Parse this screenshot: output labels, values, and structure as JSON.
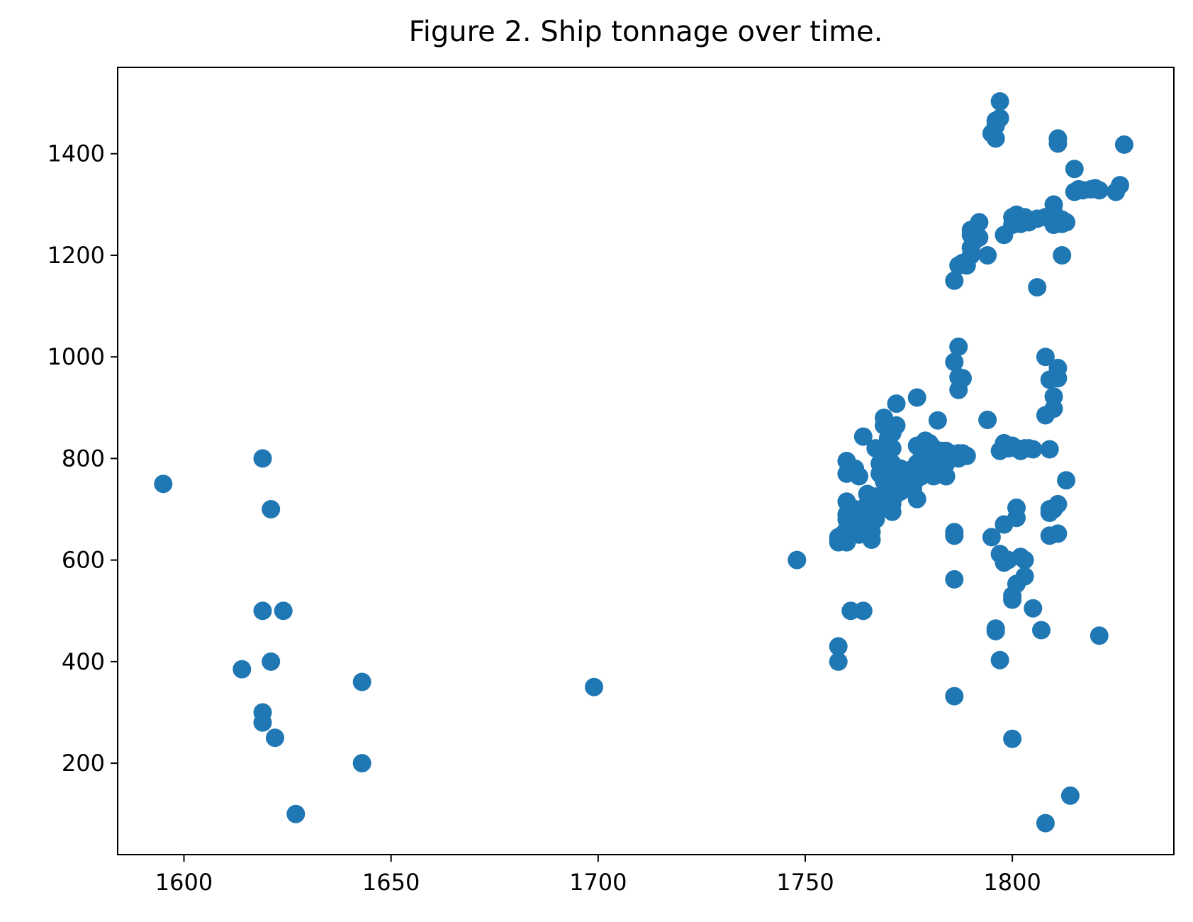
{
  "chart_data": {
    "type": "scatter",
    "title": "Figure 2. Ship tonnage over time.",
    "xlabel": "",
    "ylabel": "",
    "xlim": [
      1584,
      1839
    ],
    "ylim": [
      20,
      1570
    ],
    "xticks": [
      1600,
      1650,
      1700,
      1750,
      1800
    ],
    "yticks": [
      200,
      400,
      600,
      800,
      1000,
      1200,
      1400
    ],
    "grid": false,
    "legend": "none",
    "colors": {
      "points": "#1f77b4",
      "axes": "#000000",
      "background": "#ffffff"
    },
    "series": [
      {
        "points": [
          [
            1595,
            750
          ],
          [
            1614,
            385
          ],
          [
            1619,
            800
          ],
          [
            1619,
            500
          ],
          [
            1619,
            300
          ],
          [
            1619,
            280
          ],
          [
            1621,
            700
          ],
          [
            1621,
            400
          ],
          [
            1622,
            250
          ],
          [
            1624,
            500
          ],
          [
            1627,
            100
          ],
          [
            1643,
            360
          ],
          [
            1643,
            200
          ],
          [
            1699,
            350
          ],
          [
            1748,
            600
          ],
          [
            1758,
            640
          ],
          [
            1758,
            635
          ],
          [
            1758,
            645
          ],
          [
            1759,
            650
          ],
          [
            1758,
            430
          ],
          [
            1758,
            400
          ],
          [
            1760,
            795
          ],
          [
            1760,
            770
          ],
          [
            1760,
            715
          ],
          [
            1760,
            690
          ],
          [
            1760,
            680
          ],
          [
            1760,
            660
          ],
          [
            1760,
            635
          ],
          [
            1761,
            500
          ],
          [
            1762,
            780
          ],
          [
            1762,
            700
          ],
          [
            1762,
            665
          ],
          [
            1763,
            765
          ],
          [
            1763,
            690
          ],
          [
            1763,
            660
          ],
          [
            1763,
            650
          ],
          [
            1764,
            843
          ],
          [
            1764,
            500
          ],
          [
            1764,
            700
          ],
          [
            1764,
            680
          ],
          [
            1765,
            730
          ],
          [
            1765,
            710
          ],
          [
            1765,
            690
          ],
          [
            1765,
            670
          ],
          [
            1766,
            700
          ],
          [
            1766,
            655
          ],
          [
            1766,
            640
          ],
          [
            1767,
            820
          ],
          [
            1767,
            725
          ],
          [
            1767,
            700
          ],
          [
            1767,
            680
          ],
          [
            1768,
            790
          ],
          [
            1768,
            770
          ],
          [
            1768,
            720
          ],
          [
            1768,
            700
          ],
          [
            1769,
            880
          ],
          [
            1769,
            865
          ],
          [
            1769,
            820
          ],
          [
            1769,
            800
          ],
          [
            1769,
            780
          ],
          [
            1769,
            755
          ],
          [
            1770,
            840
          ],
          [
            1770,
            810
          ],
          [
            1770,
            790
          ],
          [
            1770,
            760
          ],
          [
            1770,
            745
          ],
          [
            1770,
            730
          ],
          [
            1771,
            850
          ],
          [
            1771,
            820
          ],
          [
            1771,
            790
          ],
          [
            1771,
            740
          ],
          [
            1771,
            710
          ],
          [
            1771,
            695
          ],
          [
            1772,
            908
          ],
          [
            1772,
            865
          ],
          [
            1772,
            770
          ],
          [
            1772,
            750
          ],
          [
            1772,
            730
          ],
          [
            1773,
            780
          ],
          [
            1773,
            760
          ],
          [
            1773,
            745
          ],
          [
            1773,
            735
          ],
          [
            1774,
            765
          ],
          [
            1774,
            750
          ],
          [
            1774,
            740
          ],
          [
            1775,
            775
          ],
          [
            1775,
            755
          ],
          [
            1775,
            745
          ],
          [
            1776,
            780
          ],
          [
            1776,
            760
          ],
          [
            1776,
            740
          ],
          [
            1777,
            920
          ],
          [
            1777,
            825
          ],
          [
            1777,
            790
          ],
          [
            1777,
            760
          ],
          [
            1777,
            720
          ],
          [
            1778,
            800
          ],
          [
            1778,
            780
          ],
          [
            1778,
            765
          ],
          [
            1779,
            835
          ],
          [
            1779,
            810
          ],
          [
            1779,
            790
          ],
          [
            1779,
            775
          ],
          [
            1780,
            830
          ],
          [
            1780,
            800
          ],
          [
            1780,
            780
          ],
          [
            1781,
            820
          ],
          [
            1781,
            790
          ],
          [
            1781,
            765
          ],
          [
            1782,
            875
          ],
          [
            1782,
            810
          ],
          [
            1782,
            780
          ],
          [
            1783,
            815
          ],
          [
            1783,
            795
          ],
          [
            1783,
            770
          ],
          [
            1784,
            815
          ],
          [
            1784,
            790
          ],
          [
            1784,
            765
          ],
          [
            1785,
            810
          ],
          [
            1785,
            800
          ],
          [
            1786,
            990
          ],
          [
            1786,
            1150
          ],
          [
            1786,
            655
          ],
          [
            1786,
            648
          ],
          [
            1786,
            562
          ],
          [
            1786,
            332
          ],
          [
            1787,
            1180
          ],
          [
            1787,
            1020
          ],
          [
            1787,
            960
          ],
          [
            1787,
            935
          ],
          [
            1787,
            810
          ],
          [
            1787,
            800
          ],
          [
            1788,
            1185
          ],
          [
            1788,
            958
          ],
          [
            1788,
            810
          ],
          [
            1789,
            1180
          ],
          [
            1789,
            805
          ],
          [
            1790,
            1250
          ],
          [
            1790,
            1240
          ],
          [
            1790,
            1215
          ],
          [
            1790,
            1200
          ],
          [
            1791,
            1245
          ],
          [
            1791,
            1230
          ],
          [
            1792,
            1265
          ],
          [
            1792,
            1235
          ],
          [
            1794,
            1200
          ],
          [
            1794,
            876
          ],
          [
            1795,
            645
          ],
          [
            1795,
            1440
          ],
          [
            1796,
            1465
          ],
          [
            1796,
            1455
          ],
          [
            1796,
            1430
          ],
          [
            1796,
            465
          ],
          [
            1796,
            460
          ],
          [
            1797,
            1503
          ],
          [
            1797,
            1470
          ],
          [
            1797,
            815
          ],
          [
            1797,
            612
          ],
          [
            1797,
            403
          ],
          [
            1798,
            1240
          ],
          [
            1798,
            830
          ],
          [
            1798,
            670
          ],
          [
            1798,
            595
          ],
          [
            1799,
            820
          ],
          [
            1799,
            600
          ],
          [
            1800,
            1275
          ],
          [
            1800,
            1260
          ],
          [
            1800,
            825
          ],
          [
            1800,
            248
          ],
          [
            1800,
            530
          ],
          [
            1800,
            522
          ],
          [
            1801,
            1280
          ],
          [
            1801,
            820
          ],
          [
            1801,
            703
          ],
          [
            1801,
            683
          ],
          [
            1801,
            553
          ],
          [
            1802,
            1262
          ],
          [
            1802,
            815
          ],
          [
            1802,
            606
          ],
          [
            1803,
            1275
          ],
          [
            1803,
            820
          ],
          [
            1803,
            600
          ],
          [
            1803,
            568
          ],
          [
            1804,
            1265
          ],
          [
            1804,
            820
          ],
          [
            1805,
            818
          ],
          [
            1805,
            505
          ],
          [
            1806,
            1272
          ],
          [
            1806,
            1137
          ],
          [
            1807,
            462
          ],
          [
            1808,
            1275
          ],
          [
            1808,
            1000
          ],
          [
            1808,
            885
          ],
          [
            1808,
            82
          ],
          [
            1809,
            818
          ],
          [
            1809,
            955
          ],
          [
            1809,
            700
          ],
          [
            1809,
            693
          ],
          [
            1809,
            648
          ],
          [
            1810,
            1300
          ],
          [
            1810,
            1285
          ],
          [
            1810,
            1260
          ],
          [
            1810,
            922
          ],
          [
            1810,
            898
          ],
          [
            1810,
            700
          ],
          [
            1811,
            1430
          ],
          [
            1811,
            1420
          ],
          [
            1811,
            978
          ],
          [
            1811,
            958
          ],
          [
            1811,
            710
          ],
          [
            1811,
            652
          ],
          [
            1812,
            1270
          ],
          [
            1812,
            1262
          ],
          [
            1812,
            1200
          ],
          [
            1813,
            1265
          ],
          [
            1813,
            757
          ],
          [
            1814,
            136
          ],
          [
            1815,
            1370
          ],
          [
            1815,
            1325
          ],
          [
            1816,
            1330
          ],
          [
            1817,
            1328
          ],
          [
            1819,
            1330
          ],
          [
            1820,
            1332
          ],
          [
            1821,
            1328
          ],
          [
            1821,
            451
          ],
          [
            1825,
            1325
          ],
          [
            1826,
            1338
          ],
          [
            1827,
            1418
          ]
        ]
      }
    ]
  }
}
